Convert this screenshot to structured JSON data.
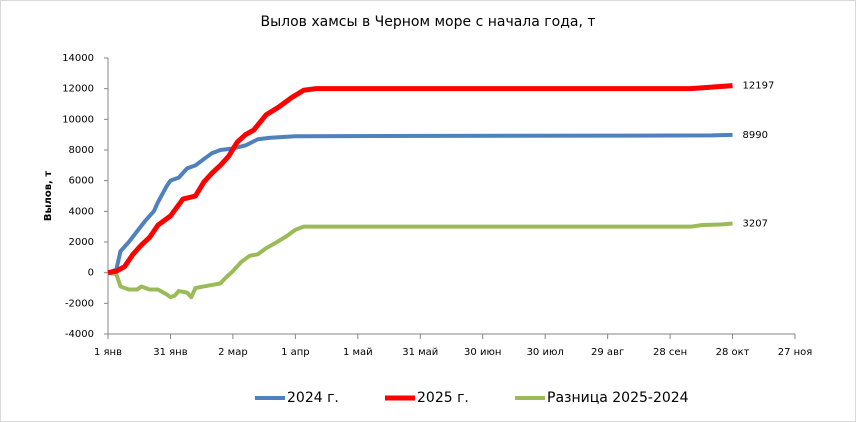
{
  "chart_data": {
    "type": "line",
    "title": "Вылов хамсы в Черном море с начала года, т",
    "y_label": "Вылов, т",
    "xlim": [
      0,
      330
    ],
    "xticks": [
      {
        "value": 0,
        "label": "1 янв"
      },
      {
        "value": 30,
        "label": "31 янв"
      },
      {
        "value": 60,
        "label": "2 мар"
      },
      {
        "value": 90,
        "label": "1 апр"
      },
      {
        "value": 120,
        "label": "1 май"
      },
      {
        "value": 150,
        "label": "31 май"
      },
      {
        "value": 180,
        "label": "30 июн"
      },
      {
        "value": 210,
        "label": "30 июл"
      },
      {
        "value": 240,
        "label": "29 авг"
      },
      {
        "value": 270,
        "label": "28 сен"
      },
      {
        "value": 300,
        "label": "28 окт"
      },
      {
        "value": 330,
        "label": "27 ноя"
      }
    ],
    "ylim": [
      -4000,
      14000
    ],
    "yticks": [
      -4000,
      -2000,
      0,
      2000,
      4000,
      6000,
      8000,
      10000,
      12000,
      14000
    ],
    "legend": "bottom",
    "series": [
      {
        "name": "2024 г.",
        "color": "#4f81bd",
        "x": [
          0,
          4,
          6,
          10,
          14,
          18,
          22,
          24,
          28,
          30,
          34,
          38,
          42,
          46,
          50,
          54,
          60,
          66,
          72,
          78,
          90,
          290,
          300
        ],
        "values": [
          0,
          200,
          1400,
          2000,
          2700,
          3400,
          4000,
          4600,
          5600,
          6000,
          6200,
          6800,
          7000,
          7400,
          7800,
          8000,
          8100,
          8300,
          8700,
          8800,
          8900,
          8950,
          8990
        ]
      },
      {
        "name": "2025 г.",
        "color": "#ff0000",
        "x": [
          0,
          4,
          8,
          12,
          16,
          20,
          24,
          30,
          36,
          42,
          46,
          50,
          54,
          58,
          62,
          66,
          70,
          76,
          82,
          88,
          94,
          100,
          280,
          290,
          300
        ],
        "values": [
          0,
          100,
          400,
          1200,
          1800,
          2300,
          3100,
          3700,
          4800,
          5000,
          5900,
          6500,
          7000,
          7600,
          8500,
          9000,
          9300,
          10300,
          10800,
          11400,
          11900,
          12000,
          12000,
          12100,
          12197
        ]
      },
      {
        "name": "Разница 2025-2024",
        "color": "#9bbb59",
        "x": [
          0,
          4,
          6,
          10,
          14,
          16,
          20,
          24,
          28,
          30,
          32,
          34,
          38,
          40,
          42,
          46,
          50,
          54,
          56,
          60,
          64,
          68,
          72,
          76,
          80,
          86,
          90,
          94,
          100,
          280,
          285,
          295,
          300
        ],
        "values": [
          0,
          -100,
          -900,
          -1100,
          -1100,
          -900,
          -1100,
          -1100,
          -1400,
          -1600,
          -1500,
          -1200,
          -1300,
          -1600,
          -1000,
          -900,
          -800,
          -700,
          -400,
          100,
          700,
          1100,
          1200,
          1600,
          1900,
          2400,
          2800,
          3000,
          3000,
          3000,
          3100,
          3150,
          3207
        ]
      }
    ]
  }
}
